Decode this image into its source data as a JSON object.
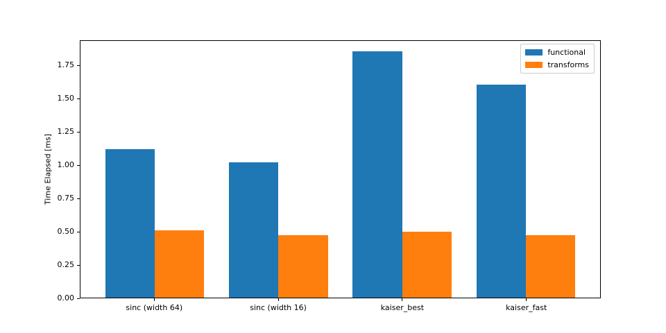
{
  "chart_data": {
    "type": "bar",
    "title": "",
    "xlabel": "",
    "ylabel": "Time Elapsed [ms]",
    "categories": [
      "sinc (width 64)",
      "sinc (width 16)",
      "kaiser_best",
      "kaiser_fast"
    ],
    "series": [
      {
        "name": "functional",
        "color": "#1f77b4",
        "values": [
          1.12,
          1.02,
          1.86,
          1.61
        ]
      },
      {
        "name": "transforms",
        "color": "#ff7f0e",
        "values": [
          0.51,
          0.47,
          0.5,
          0.47
        ]
      }
    ],
    "bar_width": 0.4,
    "xlim": [
      -0.6,
      3.6
    ],
    "ylim": [
      0,
      1.94
    ],
    "yticks": [
      0.0,
      0.25,
      0.5,
      0.75,
      1.0,
      1.25,
      1.5,
      1.75
    ],
    "ytick_decimals": 2,
    "legend_position": "upper right",
    "grid": false,
    "colors": {
      "background": "#ffffff",
      "axis": "#000000",
      "legend_border": "#cccccc",
      "functional": "#1f77b4",
      "transforms": "#ff7f0e"
    }
  }
}
